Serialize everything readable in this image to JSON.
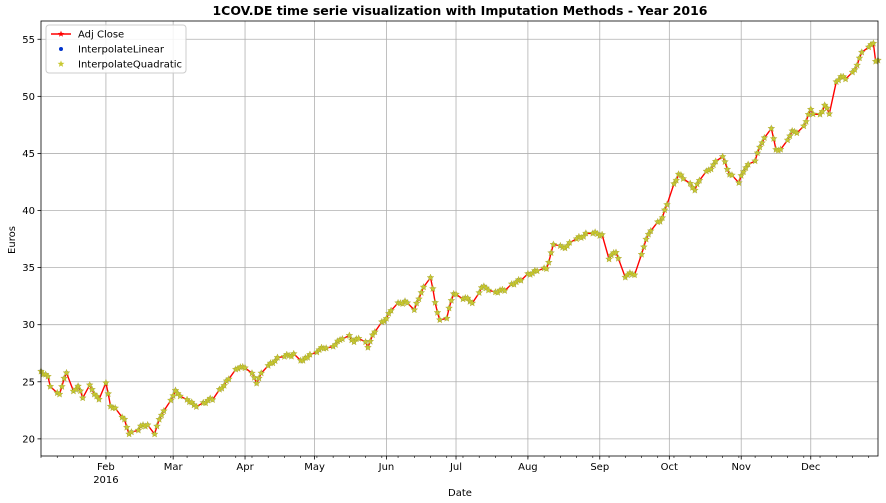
{
  "chart_data": {
    "type": "line",
    "title": "1COV.DE time serie visualization with Imputation Methods - Year 2016",
    "xlabel": "Date",
    "ylabel": "Euros",
    "ylim": [
      18.5,
      56.6
    ],
    "xlim": [
      "2016-01-04",
      "2016-12-30"
    ],
    "grid": true,
    "legend_position": "top-left",
    "y_ticks": [
      20,
      25,
      30,
      35,
      40,
      45,
      50,
      55
    ],
    "x_ticks": [
      {
        "date": "2016-02-01",
        "label": "Feb",
        "sublabel": "2016"
      },
      {
        "date": "2016-03-01",
        "label": "Mar",
        "sublabel": ""
      },
      {
        "date": "2016-04-01",
        "label": "Apr",
        "sublabel": ""
      },
      {
        "date": "2016-05-01",
        "label": "May",
        "sublabel": ""
      },
      {
        "date": "2016-06-01",
        "label": "Jun",
        "sublabel": ""
      },
      {
        "date": "2016-07-01",
        "label": "Jul",
        "sublabel": ""
      },
      {
        "date": "2016-08-01",
        "label": "Aug",
        "sublabel": ""
      },
      {
        "date": "2016-09-01",
        "label": "Sep",
        "sublabel": ""
      },
      {
        "date": "2016-10-01",
        "label": "Oct",
        "sublabel": ""
      },
      {
        "date": "2016-11-01",
        "label": "Nov",
        "sublabel": ""
      },
      {
        "date": "2016-12-01",
        "label": "Dec",
        "sublabel": ""
      }
    ],
    "keypoints": [
      [
        "2016-01-04",
        26.0
      ],
      [
        "2016-01-07",
        25.3
      ],
      [
        "2016-01-09",
        23.9
      ],
      [
        "2016-01-12",
        24.1
      ],
      [
        "2016-01-15",
        25.8
      ],
      [
        "2016-01-18",
        24.0
      ],
      [
        "2016-01-20",
        24.7
      ],
      [
        "2016-01-22",
        23.6
      ],
      [
        "2016-01-25",
        24.6
      ],
      [
        "2016-01-29",
        23.3
      ],
      [
        "2016-02-01",
        24.9
      ],
      [
        "2016-02-03",
        23.0
      ],
      [
        "2016-02-06",
        22.3
      ],
      [
        "2016-02-09",
        21.6
      ],
      [
        "2016-02-11",
        20.6
      ],
      [
        "2016-02-14",
        20.6
      ],
      [
        "2016-02-17",
        21.1
      ],
      [
        "2016-02-20",
        21.3
      ],
      [
        "2016-02-22",
        20.6
      ],
      [
        "2016-02-25",
        22.1
      ],
      [
        "2016-02-29",
        23.5
      ],
      [
        "2016-03-02",
        24.2
      ],
      [
        "2016-03-06",
        23.6
      ],
      [
        "2016-03-10",
        22.9
      ],
      [
        "2016-03-14",
        23.2
      ],
      [
        "2016-03-18",
        23.4
      ],
      [
        "2016-03-22",
        24.6
      ],
      [
        "2016-03-26",
        25.4
      ],
      [
        "2016-03-30",
        26.4
      ],
      [
        "2016-04-03",
        26.0
      ],
      [
        "2016-04-06",
        24.9
      ],
      [
        "2016-04-10",
        26.3
      ],
      [
        "2016-04-14",
        26.9
      ],
      [
        "2016-04-18",
        27.2
      ],
      [
        "2016-04-22",
        27.5
      ],
      [
        "2016-04-26",
        26.7
      ],
      [
        "2016-04-30",
        27.7
      ],
      [
        "2016-05-05",
        27.9
      ],
      [
        "2016-05-09",
        28.2
      ],
      [
        "2016-05-12",
        28.7
      ],
      [
        "2016-05-15",
        29.3
      ],
      [
        "2016-05-18",
        28.4
      ],
      [
        "2016-05-21",
        29.2
      ],
      [
        "2016-05-24",
        28.1
      ],
      [
        "2016-05-28",
        29.7
      ],
      [
        "2016-06-01",
        30.7
      ],
      [
        "2016-06-05",
        31.6
      ],
      [
        "2016-06-09",
        32.1
      ],
      [
        "2016-06-13",
        31.2
      ],
      [
        "2016-06-16",
        32.8
      ],
      [
        "2016-06-20",
        34.2
      ],
      [
        "2016-06-22",
        32.0
      ],
      [
        "2016-06-24",
        30.3
      ],
      [
        "2016-06-27",
        30.6
      ],
      [
        "2016-06-30",
        32.9
      ],
      [
        "2016-07-04",
        32.3
      ],
      [
        "2016-07-08",
        32.0
      ],
      [
        "2016-07-12",
        33.3
      ],
      [
        "2016-07-17",
        32.9
      ],
      [
        "2016-07-22",
        33.1
      ],
      [
        "2016-07-27",
        33.7
      ],
      [
        "2016-08-01",
        34.4
      ],
      [
        "2016-08-05",
        34.6
      ],
      [
        "2016-08-09",
        35.0
      ],
      [
        "2016-08-12",
        36.9
      ],
      [
        "2016-08-16",
        36.7
      ],
      [
        "2016-08-20",
        37.3
      ],
      [
        "2016-08-24",
        37.6
      ],
      [
        "2016-08-28",
        38.2
      ],
      [
        "2016-09-02",
        37.8
      ],
      [
        "2016-09-04",
        35.6
      ],
      [
        "2016-09-08",
        36.5
      ],
      [
        "2016-09-12",
        34.2
      ],
      [
        "2016-09-16",
        34.5
      ],
      [
        "2016-09-20",
        36.9
      ],
      [
        "2016-09-24",
        38.7
      ],
      [
        "2016-09-28",
        39.4
      ],
      [
        "2016-10-01",
        41.2
      ],
      [
        "2016-10-05",
        43.2
      ],
      [
        "2016-10-09",
        42.5
      ],
      [
        "2016-10-12",
        41.8
      ],
      [
        "2016-10-16",
        43.2
      ],
      [
        "2016-10-20",
        44.0
      ],
      [
        "2016-10-24",
        44.6
      ],
      [
        "2016-10-27",
        43.3
      ],
      [
        "2016-10-31",
        42.4
      ],
      [
        "2016-11-03",
        43.8
      ],
      [
        "2016-11-07",
        44.5
      ],
      [
        "2016-11-10",
        46.0
      ],
      [
        "2016-11-14",
        47.3
      ],
      [
        "2016-11-16",
        45.3
      ],
      [
        "2016-11-19",
        45.6
      ],
      [
        "2016-11-23",
        46.8
      ],
      [
        "2016-11-27",
        47.1
      ],
      [
        "2016-12-01",
        48.7
      ],
      [
        "2016-12-04",
        48.0
      ],
      [
        "2016-12-07",
        49.3
      ],
      [
        "2016-12-09",
        48.5
      ],
      [
        "2016-12-12",
        51.1
      ],
      [
        "2016-12-14",
        51.8
      ],
      [
        "2016-12-17",
        51.4
      ],
      [
        "2016-12-20",
        52.3
      ],
      [
        "2016-12-23",
        53.7
      ],
      [
        "2016-12-26",
        54.3
      ],
      [
        "2016-12-28",
        54.8
      ],
      [
        "2016-12-29",
        53.1
      ],
      [
        "2016-12-30",
        53.0
      ]
    ],
    "series": [
      {
        "name": "Adj Close",
        "color": "#ff0000",
        "marker": "star",
        "style": "line"
      },
      {
        "name": "InterpolateLinear",
        "color": "#0033cc",
        "marker": "dot",
        "style": "markers"
      },
      {
        "name": "InterpolateQuadratic",
        "color": "#c8c832",
        "marker": "star",
        "style": "markers"
      }
    ]
  }
}
